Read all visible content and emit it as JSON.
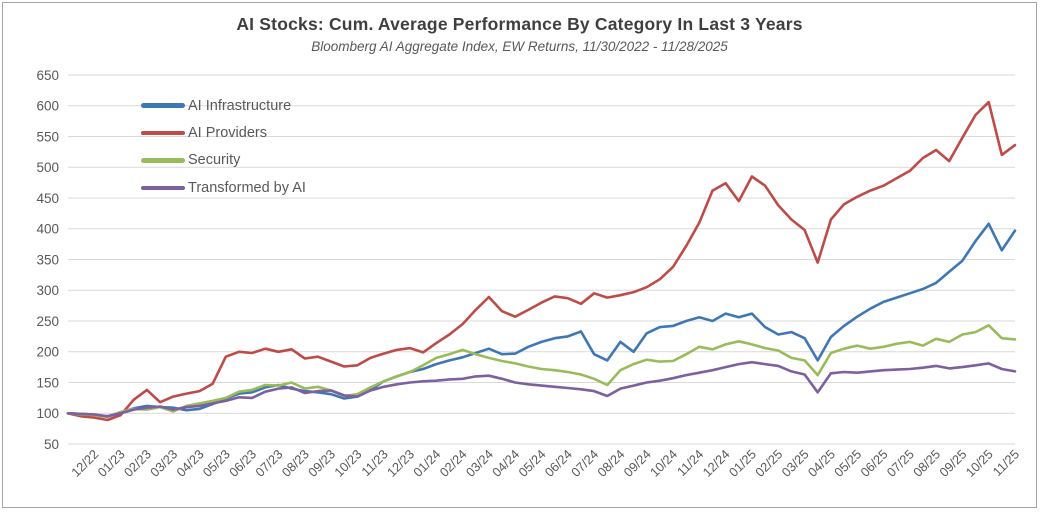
{
  "header": {
    "title": "AI Stocks: Cum. Average Performance By Category In Last 3 Years",
    "subtitle": "Bloomberg AI Aggregate Index, EW Returns, 11/30/2022 - 11/28/2025"
  },
  "colors": {
    "grid": "#d9d9d9",
    "axis_text": "#595959",
    "title_text": "#3f3f3f",
    "frame_border": "#a6a6a6",
    "background": "#ffffff"
  },
  "chart_data": {
    "type": "line",
    "title": "AI Stocks: Cum. Average Performance By Category In Last 3 Years",
    "subtitle": "Bloomberg AI Aggregate Index, EW Returns, 11/30/2022 - 11/28/2025",
    "grid": true,
    "legend_position": "top-left-inside",
    "start_value": 100,
    "sampling": "index 0 = 11/30/2022 start; then 2 points per month (mid-month, month-end) through 11/28/2025",
    "ylim": [
      50,
      650
    ],
    "y_axis": {
      "ticks": [
        50,
        100,
        150,
        200,
        250,
        300,
        350,
        400,
        450,
        500,
        550,
        600,
        650
      ]
    },
    "x_axis": {
      "labels": [
        "12/22",
        "01/23",
        "02/23",
        "03/23",
        "04/23",
        "05/23",
        "06/23",
        "07/23",
        "08/23",
        "09/23",
        "10/23",
        "11/23",
        "12/23",
        "01/24",
        "02/24",
        "03/24",
        "04/24",
        "05/24",
        "06/24",
        "07/24",
        "08/24",
        "09/24",
        "10/24",
        "11/24",
        "12/24",
        "01/25",
        "02/25",
        "03/25",
        "04/25",
        "05/25",
        "06/25",
        "07/25",
        "08/25",
        "09/25",
        "10/25",
        "11/25"
      ]
    },
    "series": [
      {
        "name": "AI Infrastructure",
        "color": "#3e77b5",
        "values": [
          100,
          99,
          98,
          95,
          101,
          108,
          112,
          110,
          109,
          105,
          107,
          115,
          124,
          132,
          134,
          142,
          146,
          140,
          136,
          134,
          131,
          124,
          127,
          138,
          152,
          160,
          167,
          172,
          180,
          186,
          191,
          198,
          205,
          196,
          197,
          208,
          216,
          222,
          225,
          233,
          196,
          186,
          216,
          200,
          230,
          240,
          242,
          250,
          256,
          250,
          262,
          256,
          262,
          240,
          228,
          232,
          222,
          186,
          224,
          242,
          257,
          270,
          281,
          288,
          295,
          302,
          312,
          330,
          348,
          380,
          408,
          365,
          397
        ]
      },
      {
        "name": "AI Providers",
        "color": "#be4b48",
        "values": [
          100,
          95,
          93,
          89,
          97,
          122,
          138,
          118,
          127,
          132,
          136,
          148,
          192,
          200,
          198,
          205,
          200,
          204,
          189,
          192,
          184,
          176,
          178,
          190,
          197,
          203,
          206,
          199,
          214,
          228,
          245,
          268,
          289,
          266,
          257,
          268,
          280,
          290,
          287,
          278,
          295,
          288,
          292,
          297,
          305,
          318,
          338,
          372,
          410,
          462,
          474,
          445,
          485,
          470,
          438,
          415,
          398,
          345,
          415,
          440,
          452,
          462,
          470,
          482,
          494,
          515,
          528,
          510,
          548,
          585,
          606,
          520,
          536
        ]
      },
      {
        "name": "Security",
        "color": "#9abb59",
        "values": [
          100,
          98,
          97,
          94,
          102,
          107,
          106,
          110,
          103,
          112,
          116,
          120,
          125,
          135,
          138,
          146,
          145,
          150,
          140,
          143,
          137,
          128,
          131,
          142,
          152,
          160,
          167,
          178,
          190,
          196,
          203,
          196,
          190,
          185,
          181,
          176,
          172,
          170,
          167,
          163,
          156,
          146,
          170,
          180,
          187,
          184,
          185,
          196,
          208,
          204,
          212,
          217,
          212,
          206,
          202,
          190,
          186,
          162,
          198,
          205,
          210,
          205,
          208,
          213,
          216,
          210,
          221,
          216,
          228,
          232,
          243,
          222,
          220
        ]
      },
      {
        "name": "Transformed by AI",
        "color": "#7d60a0",
        "values": [
          100,
          99,
          98,
          95,
          100,
          106,
          109,
          111,
          106,
          110,
          112,
          116,
          120,
          126,
          125,
          135,
          140,
          142,
          133,
          136,
          137,
          129,
          127,
          137,
          143,
          147,
          150,
          152,
          153,
          155,
          156,
          160,
          161,
          156,
          150,
          147,
          145,
          143,
          141,
          139,
          136,
          128,
          140,
          145,
          150,
          153,
          157,
          162,
          166,
          170,
          175,
          180,
          183,
          180,
          177,
          168,
          163,
          134,
          165,
          167,
          166,
          168,
          170,
          171,
          172,
          174,
          177,
          173,
          175,
          178,
          181,
          172,
          168
        ]
      }
    ]
  }
}
